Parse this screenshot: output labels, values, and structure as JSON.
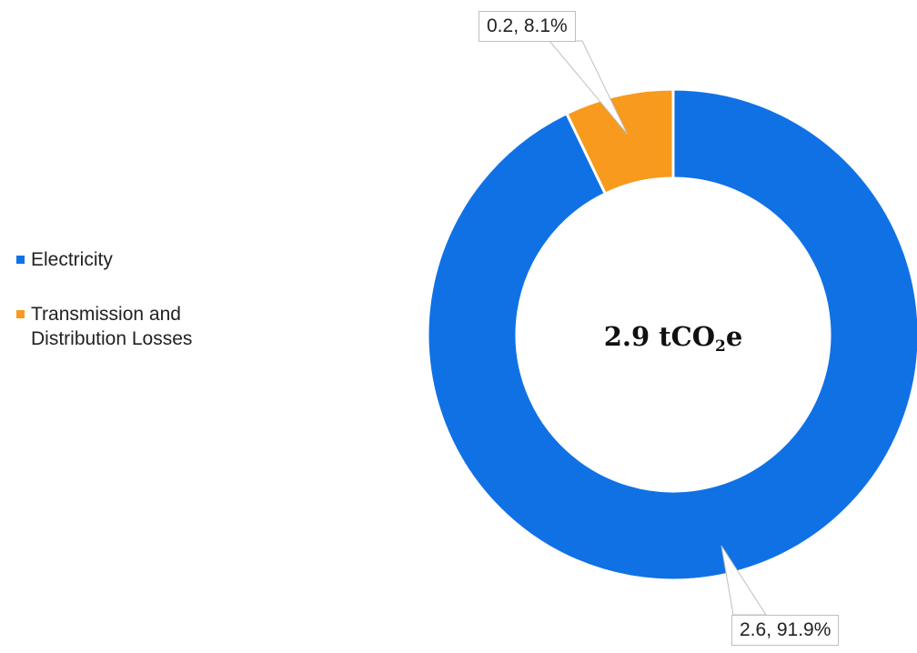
{
  "chart_data": {
    "type": "pie",
    "style": "donut",
    "categories": [
      "Electricity",
      "Transmission and Distribution Losses"
    ],
    "values": [
      2.6,
      0.2
    ],
    "percentages": [
      91.9,
      8.1
    ],
    "data_labels": [
      "2.6, 91.9%",
      "0.2, 8.1%"
    ],
    "colors": [
      "#1071E5",
      "#F79A1E"
    ],
    "center_label": {
      "prefix": "2.9 tCO",
      "subscript": "2",
      "suffix": "e"
    },
    "legend": {
      "placement": "left",
      "entries": [
        "Electricity",
        "Transmission and\nDistribution Losses"
      ]
    }
  }
}
